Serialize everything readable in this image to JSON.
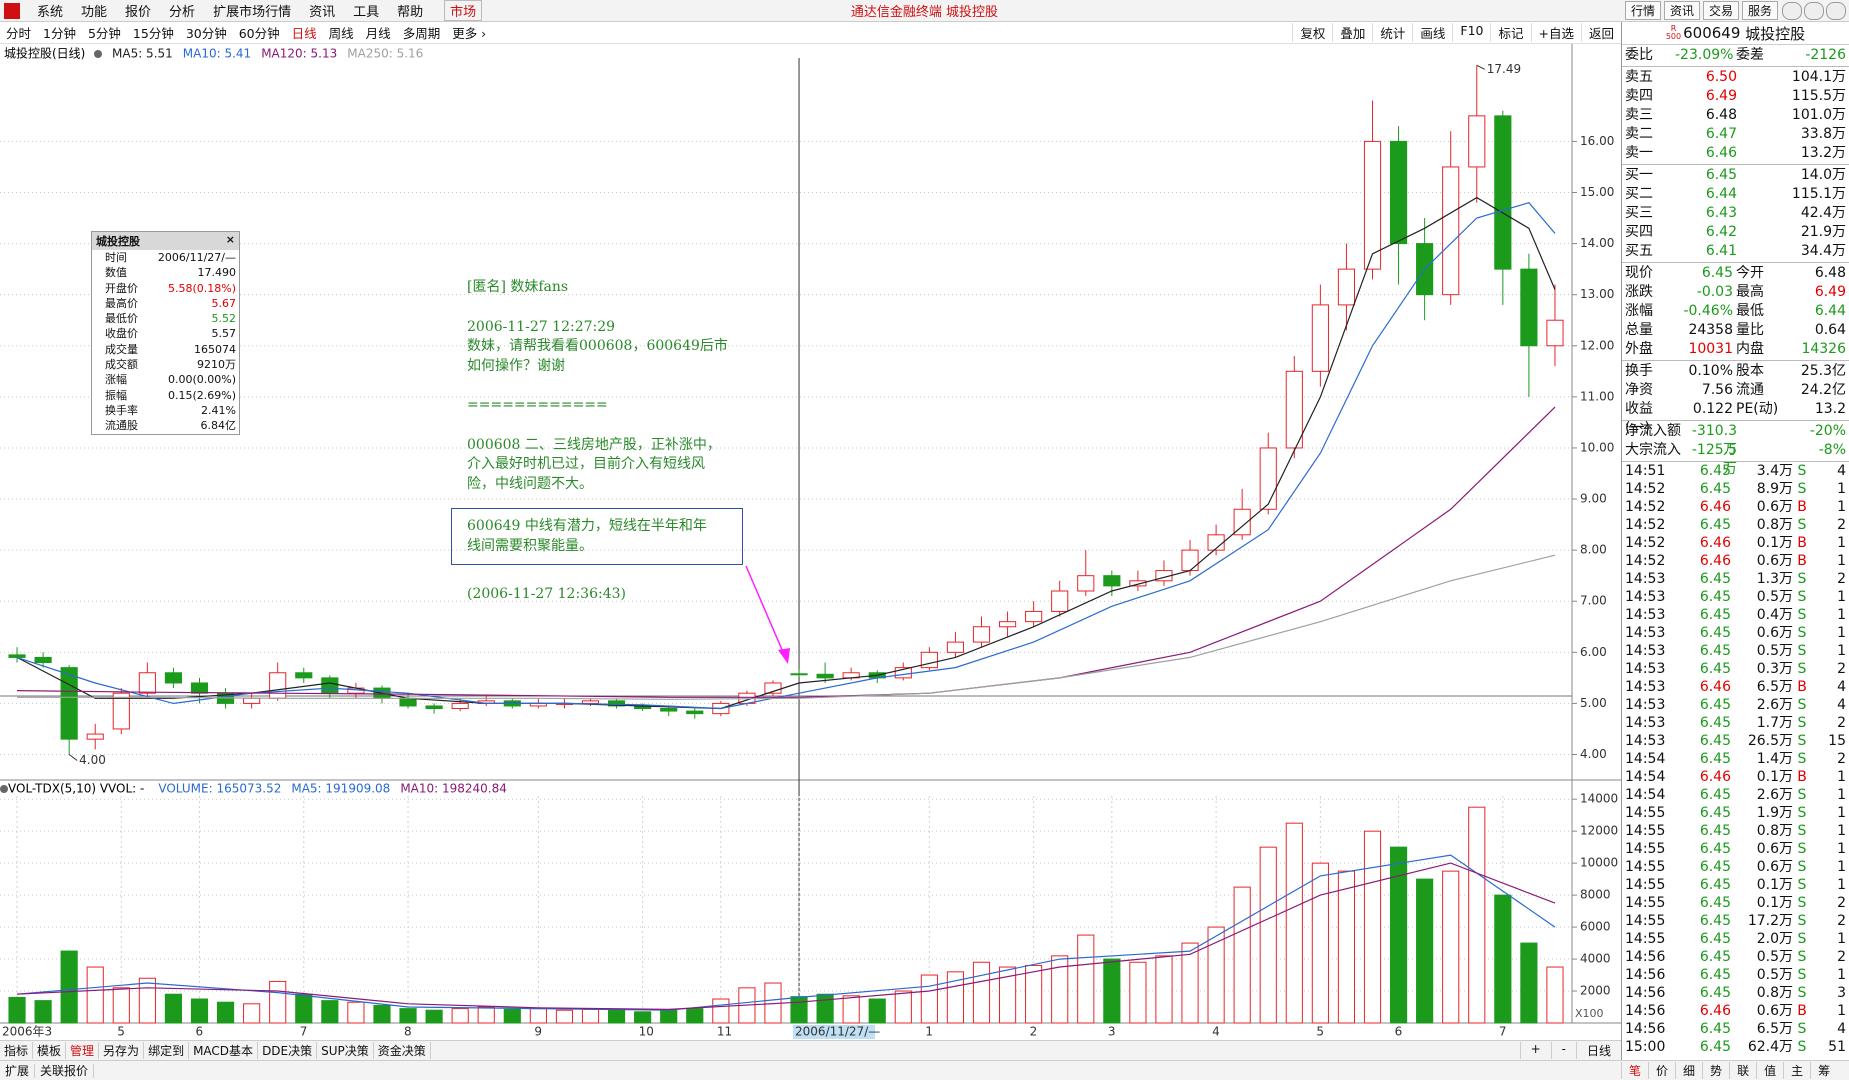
{
  "menu": {
    "items": [
      "系统",
      "功能",
      "报价",
      "分析",
      "扩展市场行情",
      "资讯",
      "工具",
      "帮助"
    ],
    "market": "市场",
    "title": "通达信金融终端  城投控股",
    "buttons": [
      "行情",
      "资讯",
      "交易",
      "服务"
    ]
  },
  "toolbar": {
    "periods": [
      "分时",
      "1分钟",
      "5分钟",
      "15分钟",
      "30分钟",
      "60分钟",
      "日线",
      "周线",
      "月线",
      "多周期",
      "更多 ›"
    ],
    "tools": [
      "复权",
      "叠加",
      "统计",
      "画线",
      "F10",
      "标记",
      "+自选",
      "返回"
    ]
  },
  "chart_data": {
    "type": "candlestick",
    "title": "城投控股(日线)",
    "categories": [
      "2006年3",
      null,
      null,
      null,
      "5",
      null,
      null,
      "6",
      null,
      null,
      null,
      "7",
      null,
      null,
      null,
      "8",
      null,
      null,
      null,
      null,
      "9",
      null,
      null,
      null,
      "10",
      null,
      null,
      "11",
      null,
      null,
      "2006/11/27/—",
      null,
      null,
      null,
      null,
      "1",
      null,
      null,
      null,
      "2",
      null,
      null,
      "3",
      null,
      null,
      null,
      "4",
      null,
      null,
      null,
      "5",
      null,
      null,
      "6",
      null,
      null,
      null,
      "7",
      null,
      null
    ],
    "candles": [
      [
        5.95,
        6.1,
        5.8,
        5.9
      ],
      [
        5.9,
        6.0,
        5.7,
        5.8
      ],
      [
        5.7,
        5.75,
        4.0,
        4.3
      ],
      [
        4.3,
        4.6,
        4.1,
        4.4
      ],
      [
        4.5,
        5.3,
        4.4,
        5.2
      ],
      [
        5.2,
        5.8,
        5.1,
        5.6
      ],
      [
        5.6,
        5.7,
        5.3,
        5.4
      ],
      [
        5.4,
        5.5,
        5.0,
        5.2
      ],
      [
        5.2,
        5.3,
        4.9,
        5.0
      ],
      [
        5.0,
        5.2,
        4.9,
        5.1
      ],
      [
        5.1,
        5.8,
        5.05,
        5.6
      ],
      [
        5.6,
        5.7,
        5.4,
        5.5
      ],
      [
        5.5,
        5.55,
        5.1,
        5.2
      ],
      [
        5.2,
        5.4,
        5.1,
        5.3
      ],
      [
        5.3,
        5.35,
        5.0,
        5.1
      ],
      [
        5.1,
        5.2,
        4.9,
        4.95
      ],
      [
        4.95,
        5.0,
        4.8,
        4.9
      ],
      [
        4.9,
        5.1,
        4.85,
        5.0
      ],
      [
        5.0,
        5.15,
        4.95,
        5.05
      ],
      [
        5.05,
        5.1,
        4.9,
        4.95
      ],
      [
        4.95,
        5.1,
        4.9,
        5.0
      ],
      [
        5.0,
        5.1,
        4.9,
        5.0
      ],
      [
        5.0,
        5.1,
        4.95,
        5.05
      ],
      [
        5.05,
        5.1,
        4.9,
        4.95
      ],
      [
        4.95,
        5.0,
        4.85,
        4.9
      ],
      [
        4.9,
        4.95,
        4.75,
        4.85
      ],
      [
        4.85,
        4.9,
        4.7,
        4.8
      ],
      [
        4.8,
        5.05,
        4.75,
        5.0
      ],
      [
        5.0,
        5.25,
        4.95,
        5.2
      ],
      [
        5.2,
        5.45,
        5.15,
        5.4
      ],
      [
        5.58,
        5.67,
        5.52,
        5.57
      ],
      [
        5.57,
        5.8,
        5.4,
        5.5
      ],
      [
        5.5,
        5.7,
        5.45,
        5.6
      ],
      [
        5.6,
        5.65,
        5.4,
        5.5
      ],
      [
        5.5,
        5.8,
        5.45,
        5.7
      ],
      [
        5.7,
        6.1,
        5.65,
        6.0
      ],
      [
        6.0,
        6.4,
        5.9,
        6.2
      ],
      [
        6.2,
        6.7,
        6.1,
        6.5
      ],
      [
        6.5,
        6.8,
        6.3,
        6.6
      ],
      [
        6.6,
        7.0,
        6.5,
        6.8
      ],
      [
        6.8,
        7.4,
        6.7,
        7.2
      ],
      [
        7.2,
        8.0,
        7.1,
        7.5
      ],
      [
        7.5,
        7.6,
        7.1,
        7.3
      ],
      [
        7.3,
        7.6,
        7.2,
        7.4
      ],
      [
        7.4,
        7.8,
        7.3,
        7.6
      ],
      [
        7.6,
        8.2,
        7.5,
        8.0
      ],
      [
        8.0,
        8.5,
        7.9,
        8.3
      ],
      [
        8.3,
        9.2,
        8.2,
        8.8
      ],
      [
        8.8,
        10.3,
        8.7,
        10.0
      ],
      [
        10.0,
        11.8,
        9.8,
        11.5
      ],
      [
        11.5,
        13.2,
        11.2,
        12.8
      ],
      [
        12.8,
        14.0,
        12.3,
        13.5
      ],
      [
        13.5,
        16.8,
        13.3,
        16.0
      ],
      [
        16.0,
        16.3,
        13.2,
        14.0
      ],
      [
        14.0,
        14.5,
        12.5,
        13.0
      ],
      [
        13.0,
        16.2,
        12.8,
        15.5
      ],
      [
        15.5,
        17.49,
        14.8,
        16.5
      ],
      [
        16.5,
        16.6,
        12.8,
        13.5
      ],
      [
        13.5,
        13.8,
        11.0,
        12.0
      ],
      [
        12.0,
        13.2,
        11.6,
        12.5
      ]
    ],
    "up_color": "#e8242a",
    "down_color": "#1c9a1c",
    "ylim": [
      3.54,
      17.75
    ],
    "yticks": [
      {
        "value": 4,
        "label": "4.00"
      },
      {
        "value": 5,
        "label": "5.00"
      },
      {
        "value": 6,
        "label": "6.00"
      },
      {
        "value": 7,
        "label": "7.00"
      },
      {
        "value": 8,
        "label": "8.00"
      },
      {
        "value": 9,
        "label": "9.00"
      },
      {
        "value": 10,
        "label": "10.00"
      },
      {
        "value": 11,
        "label": "11.00"
      },
      {
        "value": 12,
        "label": "12.00"
      },
      {
        "value": 13,
        "label": "13.00"
      },
      {
        "value": 14,
        "label": "14.00"
      },
      {
        "value": 15,
        "label": "15.00"
      },
      {
        "value": 16,
        "label": "16.00"
      }
    ],
    "grid": true,
    "max_label": "17.49",
    "min_label": "4.00",
    "ma": [
      {
        "name": "MA5: 5.51",
        "color": "#222222",
        "index": [
          0,
          3,
          6,
          9,
          12,
          15,
          18,
          21,
          24,
          27,
          30,
          33,
          36,
          39,
          42,
          45,
          48,
          50,
          52,
          54,
          56,
          58,
          59
        ],
        "values": [
          5.9,
          5.1,
          5.1,
          5.2,
          5.4,
          5.1,
          5.0,
          5.0,
          4.95,
          4.9,
          5.4,
          5.55,
          5.9,
          6.5,
          7.2,
          7.6,
          8.9,
          11.0,
          13.8,
          14.3,
          14.9,
          14.3,
          13.1
        ]
      },
      {
        "name": "MA10: 5.41",
        "color": "#2a6ad0",
        "index": [
          0,
          3,
          6,
          9,
          12,
          15,
          18,
          21,
          24,
          27,
          30,
          33,
          36,
          39,
          42,
          45,
          48,
          50,
          52,
          54,
          56,
          58,
          59
        ],
        "values": [
          5.9,
          5.4,
          5.0,
          5.2,
          5.3,
          5.2,
          5.0,
          5.0,
          4.97,
          4.9,
          5.2,
          5.5,
          5.7,
          6.2,
          6.9,
          7.4,
          8.4,
          9.9,
          12.0,
          13.5,
          14.5,
          14.8,
          14.2
        ]
      },
      {
        "name": "MA120: 5.13",
        "color": "#8a1a78",
        "index": [
          0,
          5,
          10,
          15,
          20,
          25,
          30,
          35,
          40,
          45,
          50,
          55,
          59
        ],
        "values": [
          5.25,
          5.22,
          5.2,
          5.18,
          5.15,
          5.12,
          5.12,
          5.2,
          5.5,
          6.0,
          7.0,
          8.8,
          10.8
        ]
      },
      {
        "name": "MA250: 5.16",
        "color": "#a0a0a0",
        "index": [
          0,
          5,
          10,
          15,
          20,
          25,
          30,
          35,
          40,
          45,
          50,
          55,
          59
        ],
        "values": [
          5.12,
          5.12,
          5.1,
          5.1,
          5.1,
          5.08,
          5.1,
          5.2,
          5.5,
          5.9,
          6.6,
          7.4,
          7.9
        ]
      }
    ],
    "volume": {
      "title": "VOL-TDX(5,10) VVOL: -",
      "legend": [
        {
          "name": "VOLUME: 165073.52",
          "color": "#2a6ad0"
        }
      ],
      "values": [
        1600,
        1400,
        4500,
        3500,
        2200,
        2800,
        1800,
        1500,
        1300,
        1200,
        2600,
        1800,
        1400,
        1300,
        1100,
        900,
        800,
        900,
        1000,
        850,
        900,
        800,
        850,
        800,
        700,
        800,
        900,
        1500,
        2200,
        2500,
        1650,
        1800,
        1700,
        1500,
        2000,
        3000,
        3200,
        3800,
        3500,
        3600,
        4200,
        5500,
        4000,
        3800,
        4200,
        5000,
        6000,
        8500,
        11000,
        12500,
        10000,
        9500,
        12000,
        11000,
        9000,
        9500,
        13500,
        8000,
        5000,
        3500
      ],
      "ylim": [
        0,
        14200
      ],
      "yticks": [
        2000,
        4000,
        6000,
        8000,
        10000,
        12000,
        14000
      ],
      "unit_label": "X100",
      "ma": [
        {
          "name": "MA5: 191909.08",
          "color": "#2a6ad0",
          "index": [
            0,
            5,
            10,
            15,
            20,
            25,
            30,
            35,
            40,
            45,
            50,
            55,
            59
          ],
          "values": [
            1800,
            2500,
            1900,
            1000,
            900,
            800,
            1600,
            2300,
            4000,
            4500,
            9200,
            10500,
            6000
          ]
        },
        {
          "name": "MA10: 198240.84",
          "color": "#8a1a78",
          "index": [
            0,
            5,
            10,
            15,
            20,
            25,
            30,
            35,
            40,
            45,
            50,
            55,
            59
          ],
          "values": [
            1800,
            2200,
            2000,
            1200,
            950,
            850,
            1300,
            2000,
            3500,
            4300,
            8000,
            10000,
            7500
          ]
        }
      ]
    }
  },
  "info_box": {
    "title": "城投控股",
    "rows": [
      [
        "时间",
        "2006/11/27/—"
      ],
      [
        "数值",
        "17.490"
      ],
      [
        "开盘价",
        [
          "5.58(0.18%)",
          "#e00000"
        ]
      ],
      [
        "最高价",
        [
          "5.67",
          "#e00000"
        ]
      ],
      [
        "最低价",
        [
          "5.52",
          "#1c9a1c"
        ]
      ],
      [
        "收盘价",
        "5.57"
      ],
      [
        "成交量",
        "165074"
      ],
      [
        "成交额",
        "9210万"
      ],
      [
        "涨幅",
        "0.00(0.00%)"
      ],
      [
        "振幅",
        "0.15(2.69%)"
      ],
      [
        "换手率",
        "2.41%"
      ],
      [
        "流通股",
        "6.84亿"
      ]
    ]
  },
  "annotation": {
    "paragraphs": [
      [
        "[匿名] 数妹fans"
      ],
      [
        "2006-11-27 12:27:29",
        "数妹，请帮我看看000608，600649后市",
        "如何操作？谢谢"
      ],
      [
        "============"
      ],
      [
        "000608 二、三线房地产股，正补涨中，",
        "介入最好时机已过，目前介入有短线风",
        "险，中线问题不大。"
      ]
    ],
    "boxed": [
      "600649 中线有潜力，短线在半年和年",
      "线间需要积聚能量。"
    ],
    "footer": "(2006-11-27 12:36:43)"
  },
  "bottom": {
    "tabs": [
      "指标",
      "模板",
      "管理",
      "另存为",
      "绑定到",
      "MACD基本",
      "DDE决策",
      "SUP决策",
      "资金决策"
    ],
    "controls": [
      "+",
      "-",
      "日线"
    ],
    "row2": [
      "扩展",
      "关联报价"
    ],
    "right_tabs": [
      "笔",
      "价",
      "细",
      "势",
      "联",
      "值",
      "主",
      "筹"
    ]
  },
  "quote": {
    "badge": [
      "R",
      "500"
    ],
    "code": "600649",
    "name": "城投控股",
    "groups": [
      [
        [
          "委比",
          [
            "-23.09%",
            "#1c9a1c"
          ],
          "委差",
          [
            "-2126",
            "#1c9a1c"
          ]
        ]
      ],
      [
        [
          "卖五",
          [
            "6.50",
            "#e00000"
          ],
          "104.1万"
        ],
        [
          "卖四",
          [
            "6.49",
            "#e00000"
          ],
          "115.5万"
        ],
        [
          "卖三",
          "6.48",
          "101.0万"
        ],
        [
          "卖二",
          [
            "6.47",
            "#1c9a1c"
          ],
          "33.8万"
        ],
        [
          "卖一",
          [
            "6.46",
            "#1c9a1c"
          ],
          "13.2万"
        ]
      ],
      [
        [
          "买一",
          [
            "6.45",
            "#1c9a1c"
          ],
          "14.0万"
        ],
        [
          "买二",
          [
            "6.44",
            "#1c9a1c"
          ],
          "115.1万"
        ],
        [
          "买三",
          [
            "6.43",
            "#1c9a1c"
          ],
          "42.4万"
        ],
        [
          "买四",
          [
            "6.42",
            "#1c9a1c"
          ],
          "21.9万"
        ],
        [
          "买五",
          [
            "6.41",
            "#1c9a1c"
          ],
          "34.4万"
        ]
      ],
      [
        [
          "现价",
          [
            "6.45",
            "#1c9a1c"
          ],
          "今开",
          "6.48"
        ],
        [
          "涨跌",
          [
            "-0.03",
            "#1c9a1c"
          ],
          "最高",
          [
            "6.49",
            "#e00000"
          ]
        ],
        [
          "涨幅",
          [
            "-0.46%",
            "#1c9a1c"
          ],
          "最低",
          [
            "6.44",
            "#1c9a1c"
          ]
        ],
        [
          "总量",
          "24358",
          "量比",
          "0.64"
        ],
        [
          "外盘",
          [
            "10031",
            "#e00000"
          ],
          "内盘",
          [
            "14326",
            "#1c9a1c"
          ]
        ]
      ],
      [
        [
          "换手",
          "0.10%",
          "股本",
          "25.3亿"
        ],
        [
          "净资",
          "7.56",
          "流通",
          "24.2亿"
        ],
        [
          "收益(一)",
          "0.122",
          "PE(动)",
          "13.2"
        ]
      ],
      [
        [
          "净流入额",
          [
            "-310.3万",
            "#1c9a1c"
          ],
          [
            "-20%",
            "#1c9a1c"
          ]
        ],
        [
          "大宗流入",
          [
            "-125.5万",
            "#1c9a1c"
          ],
          [
            "-8%",
            "#1c9a1c"
          ]
        ]
      ]
    ],
    "ticks": [
      [
        "14:51",
        "6.45",
        "3.4万",
        "S",
        "4"
      ],
      [
        "14:52",
        "6.45",
        "8.9万",
        "S",
        "1"
      ],
      [
        "14:52",
        "6.46",
        "0.6万",
        "B",
        "1"
      ],
      [
        "14:52",
        "6.45",
        "0.8万",
        "S",
        "2"
      ],
      [
        "14:52",
        "6.46",
        "0.1万",
        "B",
        "1"
      ],
      [
        "14:52",
        "6.46",
        "0.6万",
        "B",
        "1"
      ],
      [
        "14:53",
        "6.45",
        "1.3万",
        "S",
        "2"
      ],
      [
        "14:53",
        "6.45",
        "0.5万",
        "S",
        "1"
      ],
      [
        "14:53",
        "6.45",
        "0.4万",
        "S",
        "1"
      ],
      [
        "14:53",
        "6.45",
        "0.6万",
        "S",
        "1"
      ],
      [
        "14:53",
        "6.45",
        "0.5万",
        "S",
        "1"
      ],
      [
        "14:53",
        "6.45",
        "0.3万",
        "S",
        "2"
      ],
      [
        "14:53",
        "6.46",
        "6.5万",
        "B",
        "4"
      ],
      [
        "14:53",
        "6.45",
        "2.6万",
        "S",
        "4"
      ],
      [
        "14:53",
        "6.45",
        "1.7万",
        "S",
        "2"
      ],
      [
        "14:53",
        "6.45",
        "26.5万",
        "S",
        "15"
      ],
      [
        "14:54",
        "6.45",
        "1.4万",
        "S",
        "2"
      ],
      [
        "14:54",
        "6.46",
        "0.1万",
        "B",
        "1"
      ],
      [
        "14:54",
        "6.45",
        "2.6万",
        "S",
        "1"
      ],
      [
        "14:55",
        "6.45",
        "1.9万",
        "S",
        "1"
      ],
      [
        "14:55",
        "6.45",
        "0.8万",
        "S",
        "1"
      ],
      [
        "14:55",
        "6.45",
        "0.6万",
        "S",
        "1"
      ],
      [
        "14:55",
        "6.45",
        "0.6万",
        "S",
        "1"
      ],
      [
        "14:55",
        "6.45",
        "0.1万",
        "S",
        "1"
      ],
      [
        "14:55",
        "6.45",
        "0.1万",
        "S",
        "2"
      ],
      [
        "14:55",
        "6.45",
        "17.2万",
        "S",
        "2"
      ],
      [
        "14:55",
        "6.45",
        "2.0万",
        "S",
        "1"
      ],
      [
        "14:56",
        "6.45",
        "0.5万",
        "S",
        "2"
      ],
      [
        "14:56",
        "6.45",
        "0.5万",
        "S",
        "1"
      ],
      [
        "14:56",
        "6.45",
        "0.8万",
        "S",
        "3"
      ],
      [
        "14:56",
        "6.46",
        "0.6万",
        "B",
        "1"
      ],
      [
        "14:56",
        "6.45",
        "6.5万",
        "S",
        "4"
      ],
      [
        "15:00",
        "6.45",
        "62.4万",
        "S",
        "51"
      ]
    ],
    "side_colors": {
      "B": "#e00000",
      "S": "#1c9a1c"
    }
  }
}
